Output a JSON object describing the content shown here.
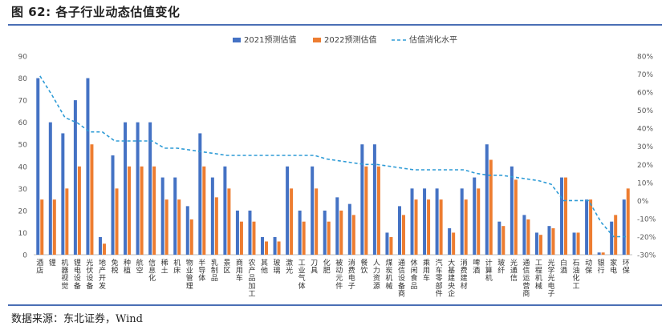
{
  "figure": {
    "title": "图 62: 各子行业动态估值变化",
    "source": "数据来源：东北证券，Wind"
  },
  "chart_data": {
    "type": "bar",
    "categories": [
      "酒店",
      "锂",
      "机器视觉",
      "锂电设备",
      "光伏设备",
      "地产开发",
      "免税",
      "种植",
      "航空",
      "信息化",
      "稀土",
      "机床",
      "物业管理",
      "半导体",
      "乳制品",
      "景区",
      "商用车",
      "农产品加工",
      "其他",
      "玻璃",
      "激光",
      "工业气体",
      "刀具",
      "化肥",
      "被动元件",
      "消费电子",
      "餐饮",
      "人力资源",
      "煤炭机械",
      "通信设备商",
      "休闲食品",
      "乘用车",
      "汽车零部件",
      "大基建央企",
      "消费建材",
      "啤酒",
      "计算机",
      "玻纤",
      "光通信",
      "通信运营商",
      "工程机械",
      "光学光电子",
      "白酒",
      "石油化工",
      "动保",
      "银行",
      "家电",
      "环保"
    ],
    "series": [
      {
        "name": "2021预测估值",
        "type": "bar",
        "color": "#4472C4",
        "values": [
          80,
          60,
          55,
          70,
          80,
          8,
          45,
          60,
          60,
          60,
          35,
          35,
          22,
          55,
          35,
          40,
          20,
          20,
          8,
          8,
          40,
          20,
          40,
          20,
          26,
          23,
          50,
          50,
          10,
          22,
          30,
          30,
          30,
          12,
          30,
          35,
          50,
          15,
          40,
          18,
          10,
          13,
          35,
          10,
          25,
          1,
          15,
          25
        ]
      },
      {
        "name": "2022预测估值",
        "type": "bar",
        "color": "#ED7D31",
        "values": [
          25,
          25,
          30,
          40,
          50,
          5,
          30,
          40,
          40,
          40,
          25,
          25,
          16,
          40,
          26,
          30,
          15,
          15,
          6,
          6,
          30,
          15,
          30,
          15,
          20,
          18,
          40,
          40,
          8,
          18,
          25,
          25,
          25,
          10,
          25,
          30,
          43,
          13,
          34,
          16,
          9,
          12,
          35,
          10,
          25,
          1,
          18,
          30
        ]
      },
      {
        "name": "估值消化水平",
        "type": "line",
        "color": "#2E9BD6",
        "axis": "right",
        "values": [
          69,
          58,
          46,
          43,
          38,
          38,
          33,
          33,
          33,
          33,
          29,
          29,
          28,
          27,
          26,
          25,
          25,
          25,
          25,
          25,
          25,
          25,
          25,
          23,
          22,
          21,
          20,
          20,
          19,
          18,
          17,
          17,
          17,
          17,
          17,
          15,
          14,
          14,
          13,
          12,
          11,
          9,
          0,
          0,
          0,
          -12,
          -20,
          -20
        ]
      }
    ],
    "y_left": {
      "ylim": [
        0,
        90
      ],
      "ticks": [
        "0",
        "10",
        "20",
        "30",
        "40",
        "50",
        "60",
        "70",
        "80",
        "90"
      ]
    },
    "y_right": {
      "ylim": [
        -30,
        80
      ],
      "ticks": [
        "-30%",
        "-20%",
        "-10%",
        "0%",
        "10%",
        "20%",
        "30%",
        "40%",
        "50%",
        "60%",
        "70%",
        "80%"
      ]
    },
    "legend": {
      "position": "top-center",
      "labels": [
        "2021预测估值",
        "2022预测估值",
        "估值消化水平"
      ]
    },
    "grid": false
  }
}
